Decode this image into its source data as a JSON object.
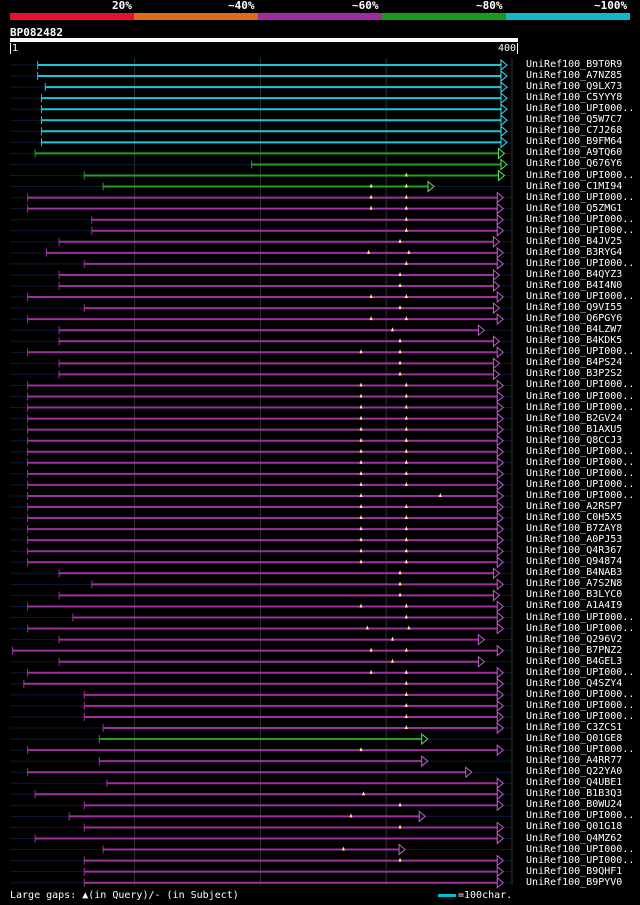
{
  "legend": {
    "labels": [
      "20%",
      "~40%",
      "~60%",
      "~80%",
      "~100%"
    ],
    "colors": [
      "#e8102c",
      "#e06b14",
      "#a02aa0",
      "#1c9a1c",
      "#10b8c8"
    ]
  },
  "title": "BP082482",
  "footer_text": "Large gaps: ▲(in Query)/- (in Subject)",
  "scale_text": "=100char.",
  "chart_data": {
    "type": "alignment",
    "query_length": 400,
    "ruler": {
      "start": "1",
      "end": "400"
    },
    "identity_classes": [
      "20%",
      "~40%",
      "~60%",
      "~80%",
      "~100%"
    ],
    "hits": [
      {
        "name": "UniRef100_B9T0R9",
        "start": 23,
        "end": 396,
        "color": "cyan",
        "gaps": []
      },
      {
        "name": "UniRef100_A7NZ85",
        "start": 23,
        "end": 396,
        "color": "cyan",
        "gaps": []
      },
      {
        "name": "UniRef100_Q9LX73",
        "start": 29,
        "end": 396,
        "color": "cyan",
        "gaps": []
      },
      {
        "name": "UniRef100_C5YYY8",
        "start": 26,
        "end": 396,
        "color": "cyan",
        "gaps": []
      },
      {
        "name": "UniRef100_UPI000..",
        "start": 26,
        "end": 396,
        "color": "cyan",
        "gaps": []
      },
      {
        "name": "UniRef100_Q5W7C7",
        "start": 26,
        "end": 396,
        "color": "cyan",
        "gaps": []
      },
      {
        "name": "UniRef100_C7J268",
        "start": 26,
        "end": 396,
        "color": "cyan",
        "gaps": []
      },
      {
        "name": "UniRef100_B9FM64",
        "start": 26,
        "end": 396,
        "color": "cyan",
        "gaps": []
      },
      {
        "name": "UniRef100_A9TQ60",
        "start": 21,
        "end": 394,
        "color": "green",
        "gaps": []
      },
      {
        "name": "UniRef100_Q676Y6",
        "start": 193,
        "end": 396,
        "color": "green",
        "gaps": []
      },
      {
        "name": "UniRef100_UPI000..",
        "start": 60,
        "end": 394,
        "color": "green",
        "gaps": [
          316
        ]
      },
      {
        "name": "UniRef100_C1MI94",
        "start": 75,
        "end": 338,
        "color": "green",
        "gaps": [
          288,
          316
        ]
      },
      {
        "name": "UniRef100_UPI000..",
        "start": 15,
        "end": 393,
        "color": "purple",
        "gaps": [
          288,
          316
        ]
      },
      {
        "name": "UniRef100_Q5ZMG1",
        "start": 15,
        "end": 393,
        "color": "purple",
        "gaps": [
          288,
          316
        ]
      },
      {
        "name": "UniRef100_UPI000..",
        "start": 66,
        "end": 393,
        "color": "purple",
        "gaps": [
          316
        ]
      },
      {
        "name": "UniRef100_UPI000..",
        "start": 66,
        "end": 393,
        "color": "purple",
        "gaps": [
          316
        ]
      },
      {
        "name": "UniRef100_B4JV25",
        "start": 40,
        "end": 390,
        "color": "purple",
        "gaps": [
          311
        ]
      },
      {
        "name": "UniRef100_B3RYG4",
        "start": 30,
        "end": 393,
        "color": "purple",
        "gaps": [
          286,
          318
        ]
      },
      {
        "name": "UniRef100_UPI000..",
        "start": 60,
        "end": 393,
        "color": "purple",
        "gaps": [
          316
        ]
      },
      {
        "name": "UniRef100_B4QYZ3",
        "start": 40,
        "end": 390,
        "color": "purple",
        "gaps": [
          311
        ]
      },
      {
        "name": "UniRef100_B4I4N0",
        "start": 40,
        "end": 390,
        "color": "purple",
        "gaps": [
          311
        ]
      },
      {
        "name": "UniRef100_UPI000..",
        "start": 15,
        "end": 393,
        "color": "purple",
        "gaps": [
          288,
          316
        ]
      },
      {
        "name": "UniRef100_Q9VI55",
        "start": 60,
        "end": 390,
        "color": "purple",
        "gaps": [
          311
        ]
      },
      {
        "name": "UniRef100_Q6PGY6",
        "start": 15,
        "end": 393,
        "color": "purple",
        "gaps": [
          288,
          316
        ]
      },
      {
        "name": "UniRef100_B4LZW7",
        "start": 40,
        "end": 378,
        "color": "purple",
        "gaps": [
          305
        ]
      },
      {
        "name": "UniRef100_B4KDK5",
        "start": 40,
        "end": 390,
        "color": "purple",
        "gaps": [
          311
        ]
      },
      {
        "name": "UniRef100_UPI000..",
        "start": 15,
        "end": 393,
        "color": "purple",
        "gaps": [
          280,
          311
        ]
      },
      {
        "name": "UniRef100_B4PS24",
        "start": 40,
        "end": 390,
        "color": "purple",
        "gaps": [
          311
        ]
      },
      {
        "name": "UniRef100_B3P2S2",
        "start": 40,
        "end": 390,
        "color": "purple",
        "gaps": [
          311
        ]
      },
      {
        "name": "UniRef100_UPI000..",
        "start": 15,
        "end": 393,
        "color": "purple",
        "gaps": [
          280,
          316
        ]
      },
      {
        "name": "UniRef100_UPI000..",
        "start": 15,
        "end": 393,
        "color": "purple",
        "gaps": [
          280,
          316
        ]
      },
      {
        "name": "UniRef100_UPI000..",
        "start": 15,
        "end": 393,
        "color": "purple",
        "gaps": [
          280,
          316
        ]
      },
      {
        "name": "UniRef100_B2GV24",
        "start": 15,
        "end": 393,
        "color": "purple",
        "gaps": [
          280,
          316
        ]
      },
      {
        "name": "UniRef100_B1AXU5",
        "start": 15,
        "end": 393,
        "color": "purple",
        "gaps": [
          280,
          316
        ]
      },
      {
        "name": "UniRef100_Q8CCJ3",
        "start": 15,
        "end": 393,
        "color": "purple",
        "gaps": [
          280,
          316
        ]
      },
      {
        "name": "UniRef100_UPI000..",
        "start": 15,
        "end": 393,
        "color": "purple",
        "gaps": [
          280,
          316
        ]
      },
      {
        "name": "UniRef100_UPI000..",
        "start": 15,
        "end": 393,
        "color": "purple",
        "gaps": [
          280,
          316
        ]
      },
      {
        "name": "UniRef100_UPI000..",
        "start": 15,
        "end": 393,
        "color": "purple",
        "gaps": [
          280,
          316
        ]
      },
      {
        "name": "UniRef100_UPI000..",
        "start": 15,
        "end": 393,
        "color": "purple",
        "gaps": [
          280,
          316
        ]
      },
      {
        "name": "UniRef100_UPI000..",
        "start": 15,
        "end": 393,
        "color": "purple",
        "gaps": [
          280,
          343
        ]
      },
      {
        "name": "UniRef100_A2RSP7",
        "start": 15,
        "end": 393,
        "color": "purple",
        "gaps": [
          280,
          316
        ]
      },
      {
        "name": "UniRef100_C0H5X5",
        "start": 15,
        "end": 393,
        "color": "purple",
        "gaps": [
          280,
          316
        ]
      },
      {
        "name": "UniRef100_B7ZAY8",
        "start": 15,
        "end": 393,
        "color": "purple",
        "gaps": [
          280,
          316
        ]
      },
      {
        "name": "UniRef100_A0PJ53",
        "start": 15,
        "end": 393,
        "color": "purple",
        "gaps": [
          280,
          316
        ]
      },
      {
        "name": "UniRef100_Q4R367",
        "start": 15,
        "end": 393,
        "color": "purple",
        "gaps": [
          280,
          316
        ]
      },
      {
        "name": "UniRef100_Q94874",
        "start": 15,
        "end": 393,
        "color": "purple",
        "gaps": [
          280,
          316
        ]
      },
      {
        "name": "UniRef100_B4NAB3",
        "start": 40,
        "end": 390,
        "color": "purple",
        "gaps": [
          311
        ]
      },
      {
        "name": "UniRef100_A7S2N8",
        "start": 66,
        "end": 393,
        "color": "purple",
        "gaps": [
          311
        ]
      },
      {
        "name": "UniRef100_B3LYC0",
        "start": 40,
        "end": 390,
        "color": "purple",
        "gaps": [
          311
        ]
      },
      {
        "name": "UniRef100_A1A4I9",
        "start": 15,
        "end": 393,
        "color": "purple",
        "gaps": [
          280,
          316
        ]
      },
      {
        "name": "UniRef100_UPI000..",
        "start": 51,
        "end": 393,
        "color": "purple",
        "gaps": [
          316
        ]
      },
      {
        "name": "UniRef100_UPI000..",
        "start": 15,
        "end": 393,
        "color": "purple",
        "gaps": [
          285,
          318
        ]
      },
      {
        "name": "UniRef100_Q296V2",
        "start": 40,
        "end": 378,
        "color": "purple",
        "gaps": [
          305
        ]
      },
      {
        "name": "UniRef100_B7PNZ2",
        "start": 3,
        "end": 393,
        "color": "purple",
        "gaps": [
          288,
          316
        ]
      },
      {
        "name": "UniRef100_B4GEL3",
        "start": 40,
        "end": 378,
        "color": "purple",
        "gaps": [
          305
        ]
      },
      {
        "name": "UniRef100_UPI000..",
        "start": 15,
        "end": 393,
        "color": "purple",
        "gaps": [
          288,
          316
        ]
      },
      {
        "name": "UniRef100_Q4SZY4",
        "start": 12,
        "end": 393,
        "color": "purple",
        "gaps": [
          316
        ]
      },
      {
        "name": "UniRef100_UPI000..",
        "start": 60,
        "end": 393,
        "color": "purple",
        "gaps": [
          316
        ]
      },
      {
        "name": "UniRef100_UPI000..",
        "start": 60,
        "end": 393,
        "color": "purple",
        "gaps": [
          316
        ]
      },
      {
        "name": "UniRef100_UPI000..",
        "start": 60,
        "end": 393,
        "color": "purple",
        "gaps": [
          316
        ]
      },
      {
        "name": "UniRef100_C3ZCS1",
        "start": 75,
        "end": 393,
        "color": "purple",
        "gaps": [
          316
        ]
      },
      {
        "name": "UniRef100_Q01GE8",
        "start": 72,
        "end": 333,
        "color": "green",
        "gaps": []
      },
      {
        "name": "UniRef100_UPI000..",
        "start": 15,
        "end": 393,
        "color": "purple",
        "gaps": [
          280
        ]
      },
      {
        "name": "UniRef100_A4RR77",
        "start": 72,
        "end": 333,
        "color": "purple",
        "gaps": []
      },
      {
        "name": "UniRef100_Q22YA0",
        "start": 15,
        "end": 368,
        "color": "purple",
        "gaps": []
      },
      {
        "name": "UniRef100_Q4UBE1",
        "start": 78,
        "end": 393,
        "color": "purple",
        "gaps": []
      },
      {
        "name": "UniRef100_B1B3Q3",
        "start": 21,
        "end": 393,
        "color": "purple",
        "gaps": [
          282
        ]
      },
      {
        "name": "UniRef100_B0WU24",
        "start": 60,
        "end": 393,
        "color": "purple",
        "gaps": [
          311
        ]
      },
      {
        "name": "UniRef100_UPI000..",
        "start": 48,
        "end": 331,
        "color": "purple",
        "gaps": [
          272
        ]
      },
      {
        "name": "UniRef100_Q01G18",
        "start": 60,
        "end": 393,
        "color": "purple",
        "gaps": [
          311
        ]
      },
      {
        "name": "UniRef100_Q4MZ62",
        "start": 21,
        "end": 393,
        "color": "purple",
        "gaps": []
      },
      {
        "name": "UniRef100_UPI000..",
        "start": 75,
        "end": 315,
        "color": "purple",
        "gaps": [
          266
        ]
      },
      {
        "name": "UniRef100_UPI000..",
        "start": 60,
        "end": 393,
        "color": "purple",
        "gaps": [
          311
        ]
      },
      {
        "name": "UniRef100_B9QHF1",
        "start": 60,
        "end": 393,
        "color": "purple",
        "gaps": []
      },
      {
        "name": "UniRef100_B9PYV0",
        "start": 60,
        "end": 393,
        "color": "purple",
        "gaps": []
      }
    ]
  }
}
